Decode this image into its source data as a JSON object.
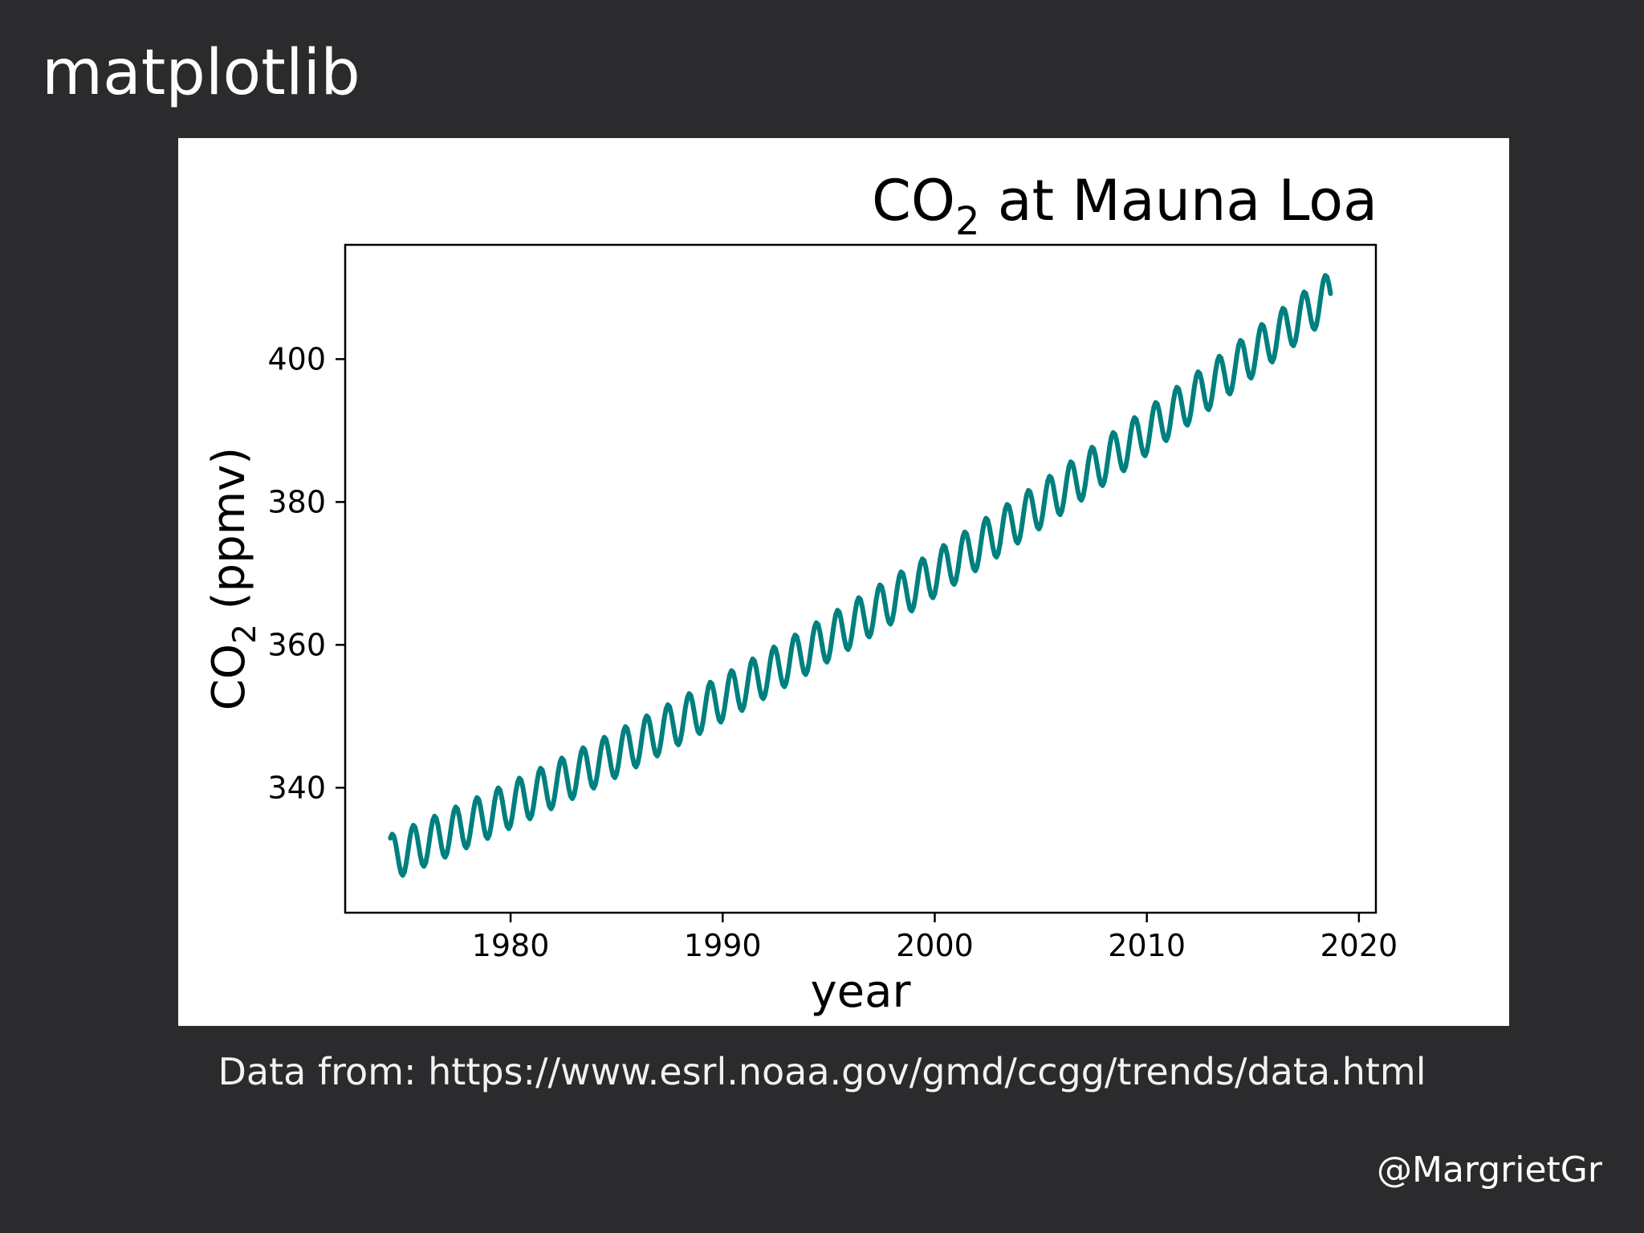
{
  "slide": {
    "heading": "matplotlib",
    "source_note": "Data from: https://www.esrl.noaa.gov/gmd/ccgg/trends/data.html",
    "credit": "@MargrietGr"
  },
  "colors": {
    "background": "#2b2a2c",
    "panel": "#ffffff",
    "series": "#007f7f",
    "text": "#ffffff"
  },
  "chart_data": {
    "type": "line",
    "title_main": "CO",
    "title_sub": "2",
    "title_rest": " at Mauna Loa",
    "xlabel": "year",
    "ylabel_main": "CO",
    "ylabel_sub": "2",
    "ylabel_rest": " (ppmv)",
    "xlim": [
      1972.2,
      2020.8
    ],
    "ylim": [
      322.5,
      416
    ],
    "xticks": [
      1980,
      1990,
      2000,
      2010,
      2020
    ],
    "xtick_labels": [
      "1980",
      "1990",
      "2000",
      "2010",
      "2020"
    ],
    "yticks": [
      340,
      360,
      380,
      400
    ],
    "ytick_labels": [
      "340",
      "360",
      "380",
      "400"
    ],
    "grid": false,
    "legend": "none",
    "series": [
      {
        "color": "#007f7f",
        "x_start": 1974.33,
        "x_end": 2018.67,
        "points_per_year": 12,
        "baseline_start": 330.2,
        "growth_per_year": 1.23,
        "growth_acceleration": 0.0124,
        "seasonal_amplitude": 3.2,
        "peak_month": 5,
        "x_sample": [
          1974.33,
          1980,
          1990,
          2000,
          2010,
          2018.67
        ],
        "y_sample": [
          333.5,
          338.7,
          354.4,
          369.5,
          389.9,
          407.8
        ]
      }
    ]
  }
}
